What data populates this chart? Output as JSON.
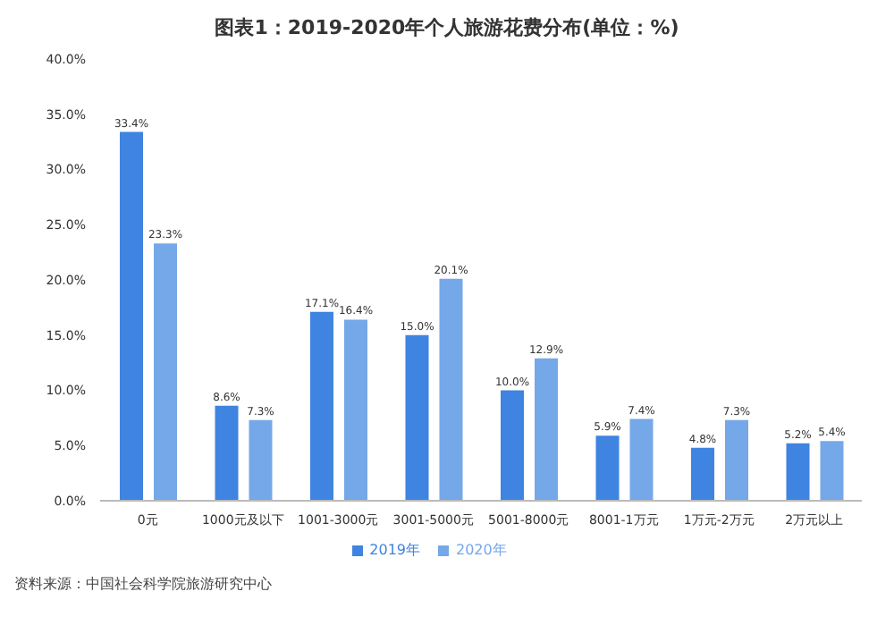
{
  "chart_data": {
    "type": "bar",
    "title": "图表1：2019-2020年个人旅游花费分布(单位：%)",
    "categories": [
      "0元",
      "1000元及以下",
      "1001-3000元",
      "3001-5000元",
      "5001-8000元",
      "8001-1万元",
      "1万元-2万元",
      "2万元以上"
    ],
    "series": [
      {
        "name": "2019年",
        "color": "#3f84e0",
        "values": [
          33.4,
          8.6,
          17.1,
          15.0,
          10.0,
          5.9,
          4.8,
          5.2
        ],
        "value_labels": [
          "33.4%",
          "8.6%",
          "17.1%",
          "15.0%",
          "10.0%",
          "5.9%",
          "4.8%",
          "5.2%"
        ]
      },
      {
        "name": "2020年",
        "color": "#75a8e8",
        "values": [
          23.3,
          7.3,
          16.4,
          20.1,
          12.9,
          7.4,
          7.3,
          5.4
        ],
        "value_labels": [
          "23.3%",
          "7.3%",
          "16.4%",
          "20.1%",
          "12.9%",
          "7.4%",
          "7.3%",
          "5.4%"
        ]
      }
    ],
    "ylim": [
      0,
      40
    ],
    "yticks": [
      {
        "value": 0,
        "label": "0.0%"
      },
      {
        "value": 5,
        "label": "5.0%"
      },
      {
        "value": 10,
        "label": "10.0%"
      },
      {
        "value": 15,
        "label": "15.0%"
      },
      {
        "value": 20,
        "label": "20.0%"
      },
      {
        "value": 25,
        "label": "25.0%"
      },
      {
        "value": 30,
        "label": "30.0%"
      },
      {
        "value": 35,
        "label": "35.0%"
      },
      {
        "value": 40,
        "label": "40.0%"
      }
    ],
    "legend": "bottom",
    "annotations": [
      "资料来源：中国社会科学院旅游研究中心"
    ]
  }
}
